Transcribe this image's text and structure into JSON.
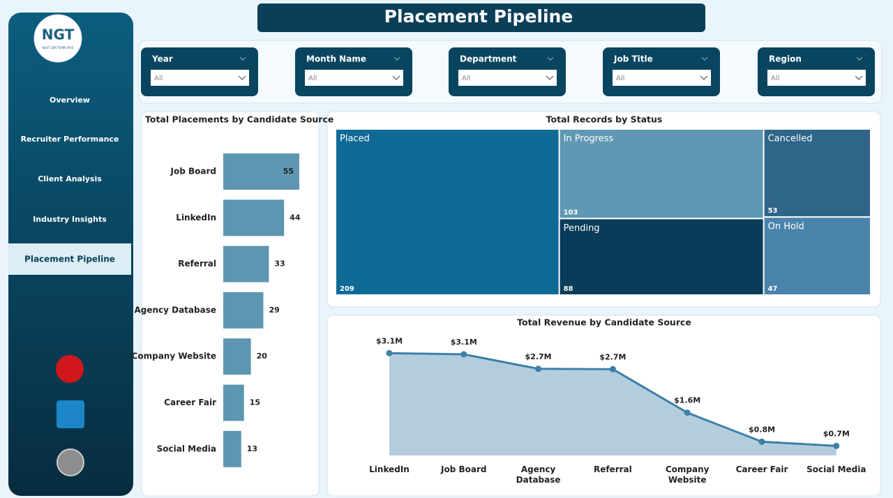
{
  "title": "Placement Pipeline",
  "logo": {
    "text": "NGT",
    "subtitle": "NEXT GEN TEMPLATES"
  },
  "nav": [
    "Overview",
    "Recruiter Performance",
    "Client Analysis",
    "Industry Insights",
    "Placement Pipeline"
  ],
  "active_nav": 4,
  "filters": [
    {
      "label": "Year",
      "value": "All"
    },
    {
      "label": "Month Name",
      "value": "All"
    },
    {
      "label": "Department",
      "value": "All"
    },
    {
      "label": "Job Title",
      "value": "All"
    },
    {
      "label": "Region",
      "value": "All"
    }
  ],
  "chart_data": [
    {
      "type": "bar",
      "orientation": "horizontal",
      "title": "Total Placements by Candidate Source",
      "categories": [
        "Job Board",
        "LinkedIn",
        "Referral",
        "Agency Database",
        "Company Website",
        "Career Fair",
        "Social Media"
      ],
      "values": [
        55,
        44,
        33,
        29,
        20,
        15,
        13
      ],
      "color": "#5d96b0",
      "xlim": [
        0,
        55
      ]
    },
    {
      "type": "treemap",
      "title": "Total Records by Status",
      "categories": [
        "Placed",
        "In Progress",
        "Cancelled",
        "Pending",
        "On Hold"
      ],
      "values": [
        209,
        103,
        53,
        88,
        47
      ],
      "colors": [
        "#0f6a96",
        "#5f98b2",
        "#2f6589",
        "#093c58",
        "#4b84ab"
      ]
    },
    {
      "type": "area",
      "title": "Total Revenue by Candidate Source",
      "categories": [
        "LinkedIn",
        "Job Board",
        "Agency Database",
        "Referral",
        "Company Website",
        "Career Fair",
        "Social Media"
      ],
      "values": [
        3120000,
        3090000,
        2710000,
        2700000,
        1560000,
        800000,
        690000
      ],
      "value_labels": [
        "$3.1M",
        "$3.1M",
        "$2.7M",
        "$2.7M",
        "$1.6M",
        "$0.8M",
        "$0.7M"
      ],
      "color": "#3c7fa8",
      "fill": "#b4cddd",
      "ylim": [
        440000,
        3400000
      ]
    }
  ]
}
